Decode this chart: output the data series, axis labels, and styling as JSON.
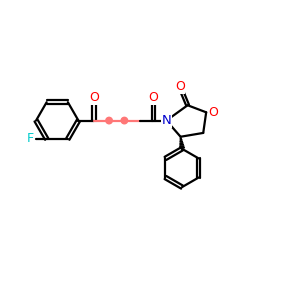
{
  "bg_color": "#ffffff",
  "bond_color": "#000000",
  "oxygen_color": "#ff0000",
  "nitrogen_color": "#0000cd",
  "fluorine_color": "#00cccc",
  "chain_color": "#ff7777",
  "line_width": 1.6,
  "figsize": [
    3.0,
    3.0
  ],
  "dpi": 100,
  "xlim": [
    0,
    10
  ],
  "ylim": [
    0,
    10
  ]
}
